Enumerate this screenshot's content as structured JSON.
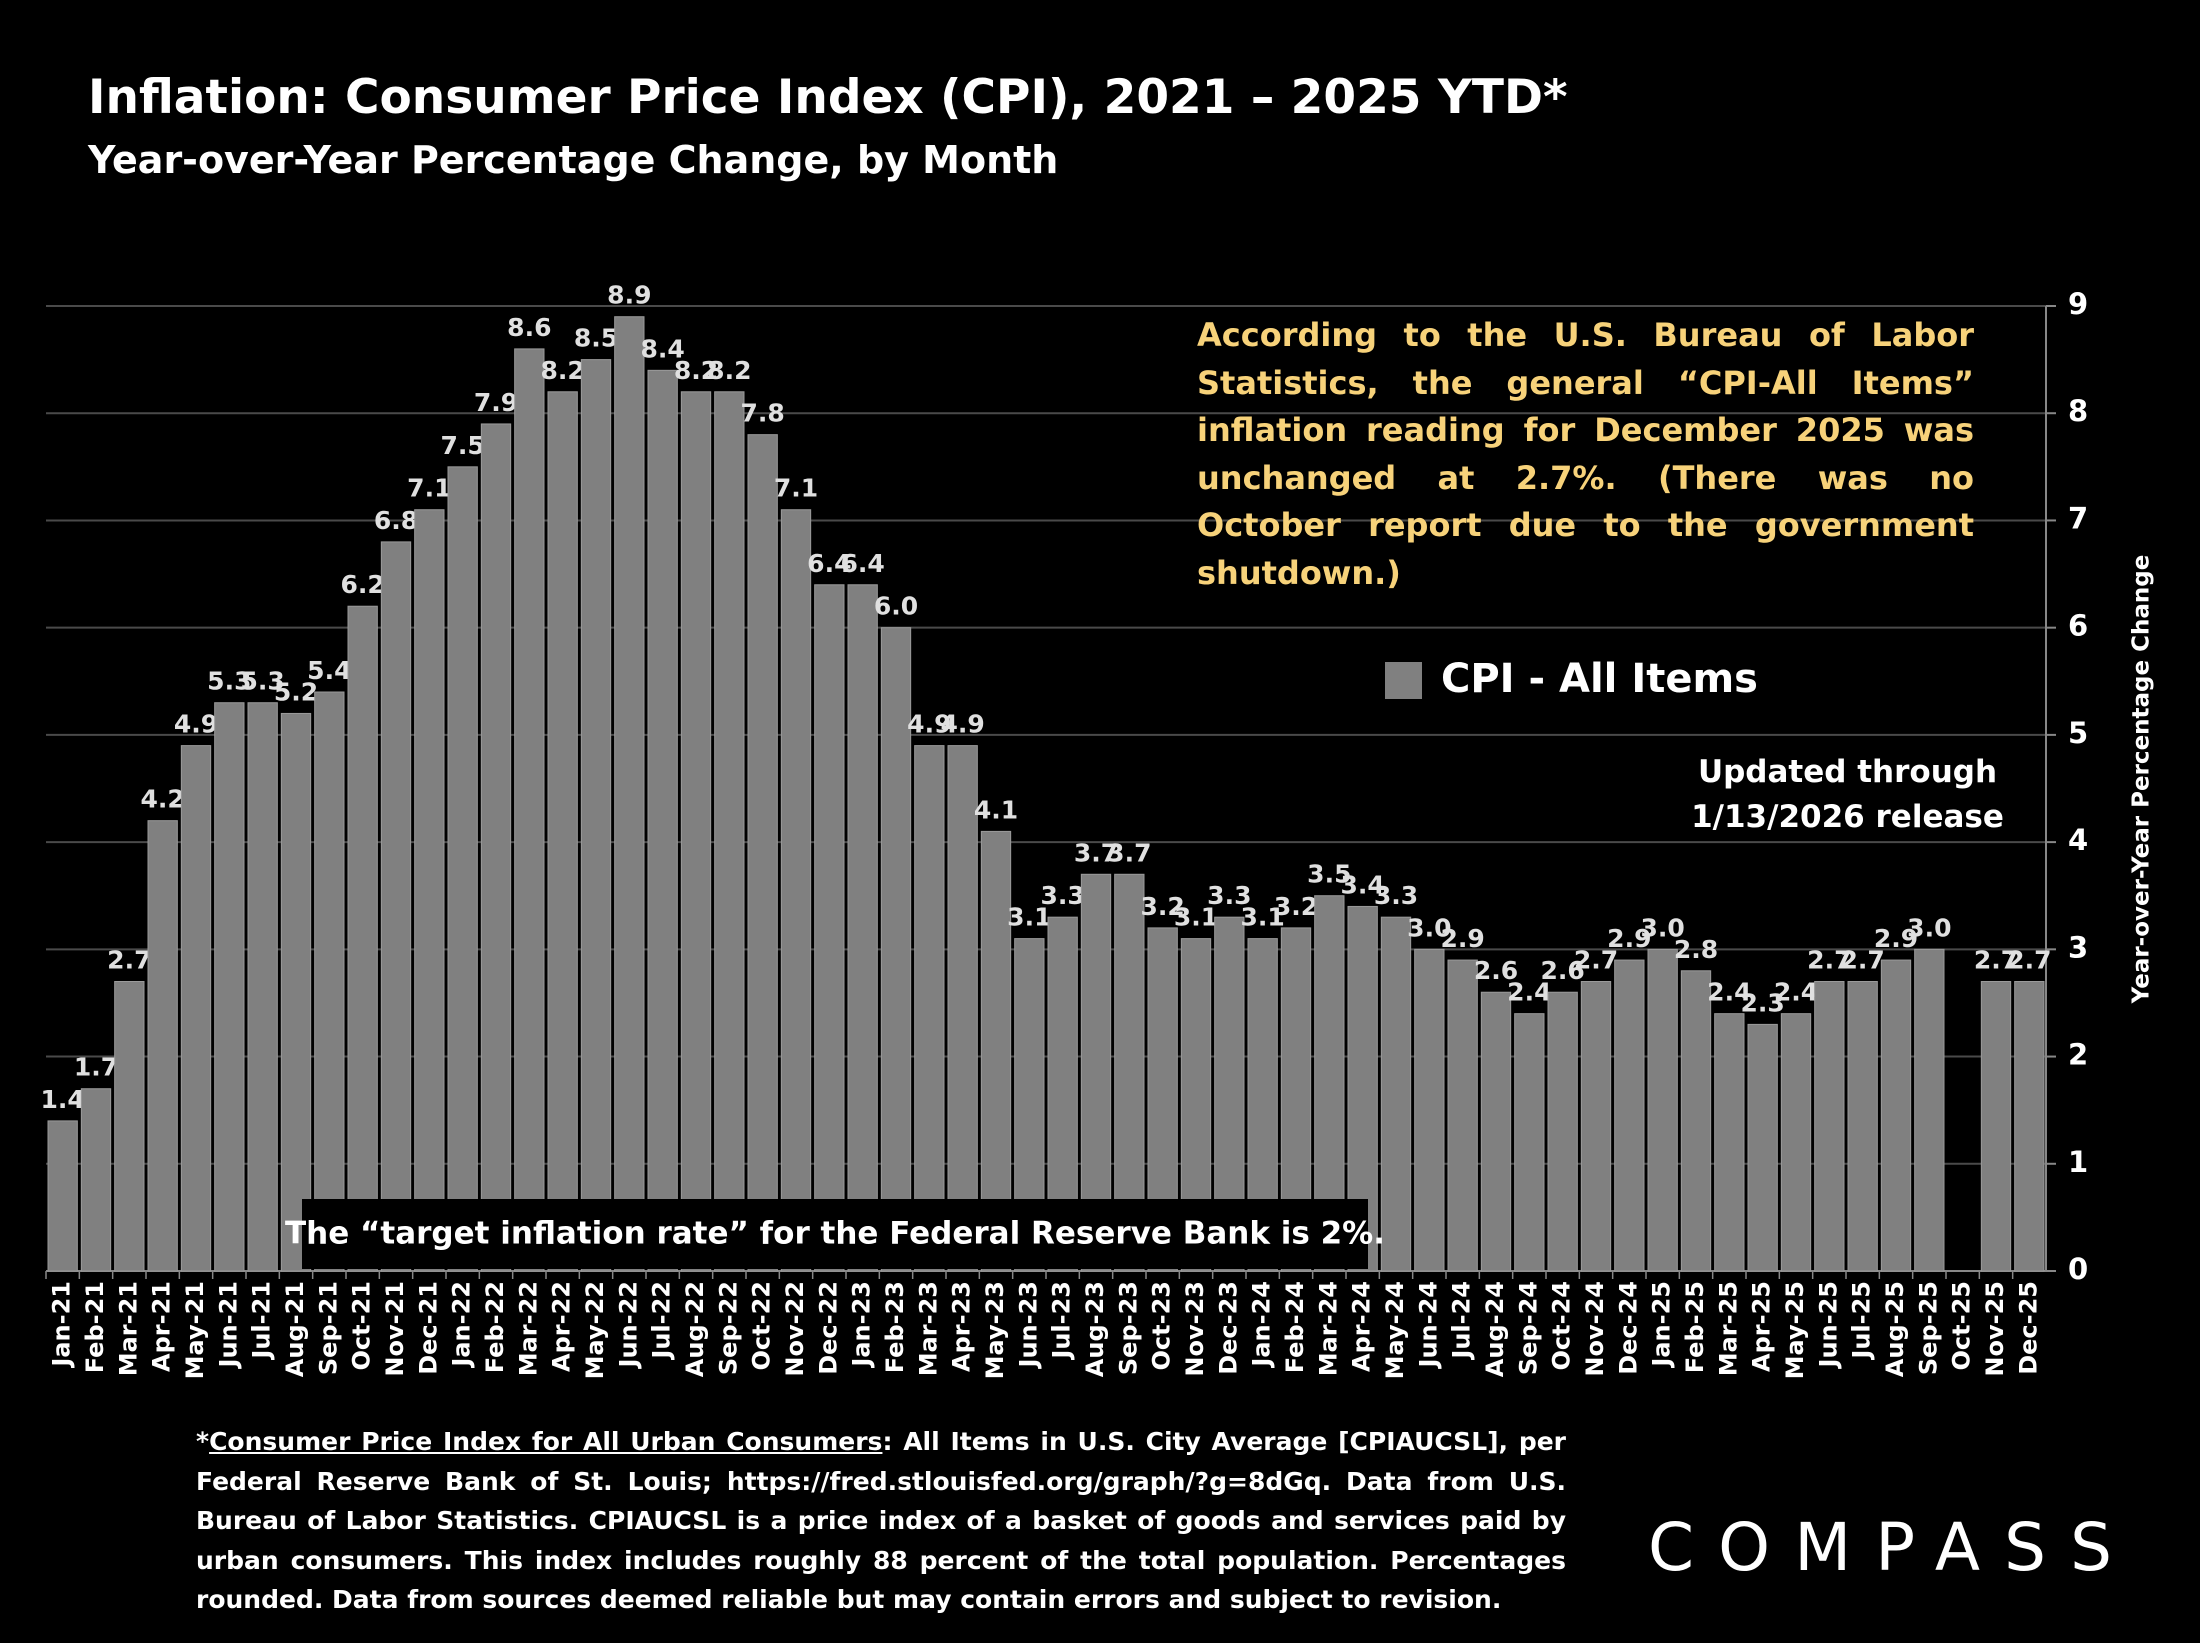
{
  "chart_data": {
    "type": "bar",
    "title": "Inflation: Consumer Price Index (CPI), 2021 – 2025 YTD*",
    "subtitle": "Year-over-Year Percentage Change, by Month",
    "y_axis_label": "Year-over-Year Percentage Change",
    "categories": [
      "Jan-21",
      "Feb-21",
      "Mar-21",
      "Apr-21",
      "May-21",
      "Jun-21",
      "Jul-21",
      "Aug-21",
      "Sep-21",
      "Oct-21",
      "Nov-21",
      "Dec-21",
      "Jan-22",
      "Feb-22",
      "Mar-22",
      "Apr-22",
      "May-22",
      "Jun-22",
      "Jul-22",
      "Aug-22",
      "Sep-22",
      "Oct-22",
      "Nov-22",
      "Dec-22",
      "Jan-23",
      "Feb-23",
      "Mar-23",
      "Apr-23",
      "May-23",
      "Jun-23",
      "Jul-23",
      "Aug-23",
      "Sep-23",
      "Oct-23",
      "Nov-23",
      "Dec-23",
      "Jan-24",
      "Feb-24",
      "Mar-24",
      "Apr-24",
      "May-24",
      "Jun-24",
      "Jul-24",
      "Aug-24",
      "Sep-24",
      "Oct-24",
      "Nov-24",
      "Dec-24",
      "Jan-25",
      "Feb-25",
      "Mar-25",
      "Apr-25",
      "May-25",
      "Jun-25",
      "Jul-25",
      "Aug-25",
      "Sep-25",
      "Oct-25",
      "Nov-25",
      "Dec-25"
    ],
    "series": [
      {
        "name": "CPI - All Items",
        "color": "#808080",
        "values": [
          1.4,
          1.7,
          2.7,
          4.2,
          4.9,
          5.3,
          5.3,
          5.2,
          5.4,
          6.2,
          6.8,
          7.1,
          7.5,
          7.9,
          8.6,
          8.2,
          8.5,
          8.9,
          8.4,
          8.2,
          8.2,
          7.8,
          7.1,
          6.4,
          6.4,
          6.0,
          4.9,
          4.9,
          4.1,
          3.1,
          3.3,
          3.7,
          3.7,
          3.2,
          3.1,
          3.3,
          3.1,
          3.2,
          3.5,
          3.4,
          3.3,
          3.0,
          2.9,
          2.6,
          2.4,
          2.6,
          2.7,
          2.9,
          3.0,
          2.8,
          2.4,
          2.3,
          2.4,
          2.7,
          2.7,
          2.9,
          3.0,
          null,
          2.7,
          2.7
        ],
        "value_labels": [
          "1.4",
          "1.7",
          "2.7",
          "4.2",
          "4.9",
          "5.3",
          "5.3",
          "5.2",
          "5.4",
          "6.2",
          "6.8",
          "7.1",
          "7.5",
          "7.9",
          "8.6",
          "8.2",
          "8.5",
          "8.9",
          "8.4",
          "8.2",
          "8.2",
          "7.8",
          "7.1",
          "6.4",
          "6.4",
          "6.0",
          "4.9",
          "4.9",
          "4.1",
          "3.1",
          "3.3",
          "3.7",
          "3.7",
          "3.2",
          "3.1",
          "3.3",
          "3.1",
          "3.2",
          "3.5",
          "3.4",
          "3.3",
          "3.0",
          "2.9",
          "2.6",
          "2.4",
          "2.6",
          "2.7",
          "2.9",
          "3.0",
          "2.8",
          "2.4",
          "2.3",
          "2.4",
          "2.7",
          "2.7",
          "2.9",
          "3.0",
          null,
          "2.7",
          "2.7"
        ]
      }
    ],
    "ylim": [
      0,
      9
    ],
    "yticks": [
      0,
      1,
      2,
      3,
      4,
      5,
      6,
      7,
      8,
      9
    ],
    "grid": true,
    "legend": "right",
    "annotation": "According to the U.S. Bureau of Labor Statistics, the general “CPI-All Items” inflation reading for December 2025 was unchanged at 2.7%. (There was no October report due to the government shutdown.)",
    "updated_note": [
      "Updated through",
      "1/13/2026 release"
    ],
    "target_note": "The “target inflation rate” for the Federal Reserve Bank is 2%.",
    "footnote": [
      "*",
      "Consumer Price Index for All Urban Consumers",
      ": All Items in U.S. City Average [CPIAUCSL], per Federal Reserve Bank of St. Louis; https://fred.stlouisfed.org/graph/?g=8dGq. Data from U.S. Bureau of Labor Statistics. CPIAUCSL is a price index of a basket of goods and services paid by urban consumers. This index includes roughly 88 percent of the total population. Percentages rounded. Data from sources deemed reliable but may contain errors and subject to revision."
    ],
    "logo": "COMPASS"
  }
}
